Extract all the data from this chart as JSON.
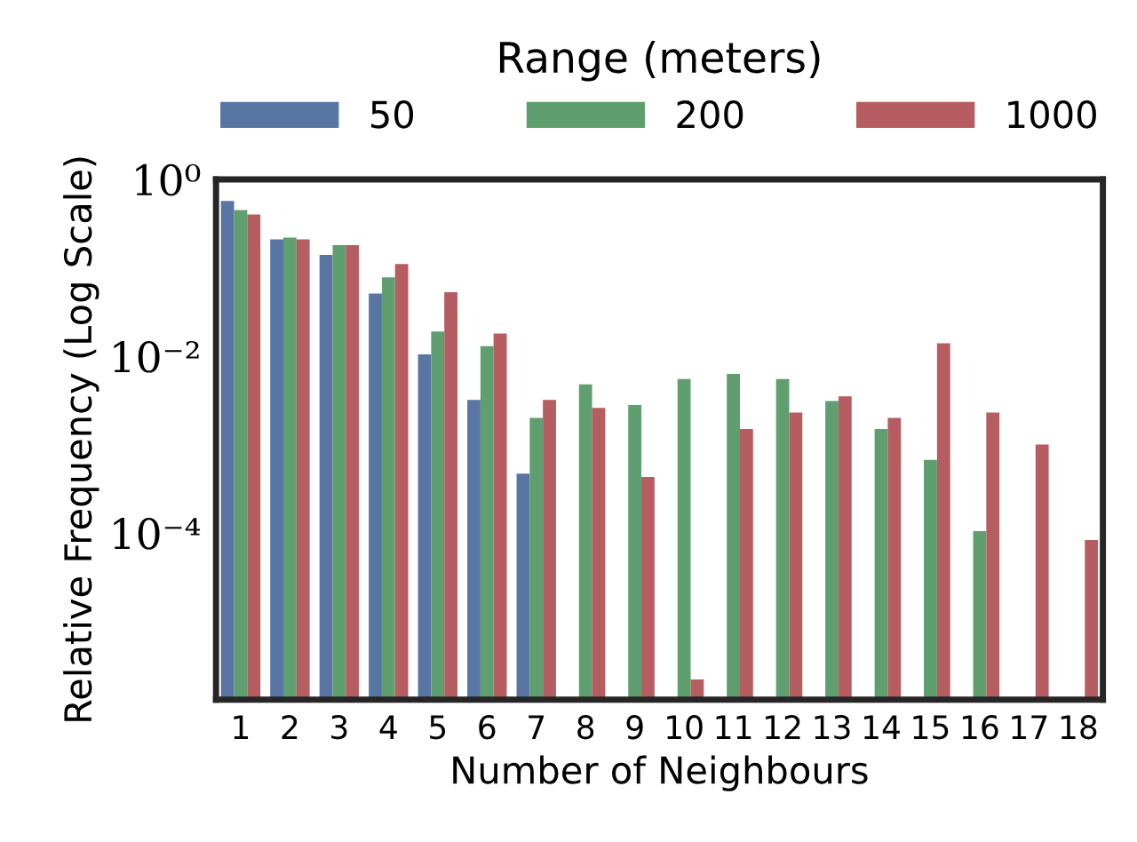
{
  "chart_data": {
    "type": "bar",
    "xlabel": "Number of Neighbours",
    "ylabel": "Relative Frequency (Log Scale)",
    "legend_title": "Range (meters)",
    "legend": "top",
    "log": true,
    "grid": false,
    "categories": [
      "1",
      "2",
      "3",
      "4",
      "5",
      "6",
      "7",
      "8",
      "9",
      "10",
      "11",
      "12",
      "13",
      "14",
      "15",
      "16",
      "17",
      "18"
    ],
    "ylim": [
      1.3e-06,
      1
    ],
    "yticks": [
      {
        "value": 1,
        "label": "10⁰"
      },
      {
        "value": 0.01,
        "label": "10⁻²"
      },
      {
        "value": 0.0001,
        "label": "10⁻⁴"
      }
    ],
    "series": [
      {
        "name": "50",
        "color": "#5875a4",
        "values": [
          0.57,
          0.21,
          0.14,
          0.051,
          0.0105,
          0.0032,
          0.00047,
          null,
          null,
          null,
          null,
          null,
          null,
          null,
          null,
          null,
          null,
          null
        ]
      },
      {
        "name": "200",
        "color": "#5f9e6e",
        "values": [
          0.45,
          0.22,
          0.18,
          0.078,
          0.019,
          0.013,
          0.002,
          0.0048,
          0.0028,
          0.0055,
          0.0063,
          0.0055,
          0.0031,
          0.0015,
          0.00067,
          0.000105,
          null,
          null
        ]
      },
      {
        "name": "1000",
        "color": "#b55d60",
        "values": [
          0.4,
          0.21,
          0.18,
          0.11,
          0.053,
          0.018,
          0.0032,
          0.0026,
          0.00043,
          2.2e-06,
          0.0015,
          0.0023,
          0.0035,
          0.002,
          0.014,
          0.0023,
          0.001,
          8.3e-05
        ]
      }
    ]
  }
}
